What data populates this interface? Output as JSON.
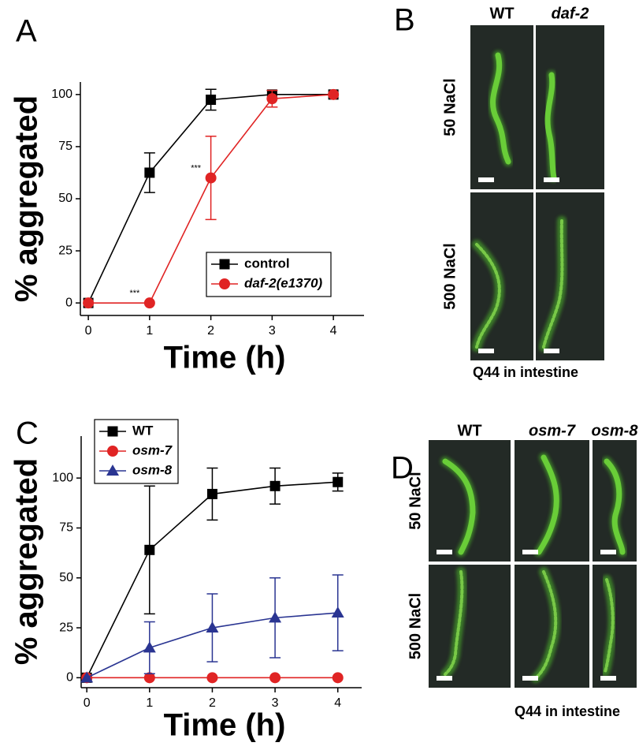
{
  "chart_data": [
    {
      "type": "line",
      "panel_label": "A",
      "ylabel": "% aggregated",
      "xlabel": "Time (h)",
      "x": [
        0,
        1,
        2,
        3,
        4
      ],
      "series": [
        {
          "name": "control",
          "color": "#000000",
          "marker": "square",
          "italic": false,
          "values": [
            0,
            62.5,
            97.5,
            100,
            100
          ],
          "errors": [
            0,
            9.5,
            5,
            0,
            0
          ]
        },
        {
          "name": "daf-2(e1370)",
          "color": "#e02424",
          "marker": "circle",
          "italic": true,
          "values": [
            0,
            0,
            60,
            98,
            100
          ],
          "errors": [
            0,
            0,
            20,
            4,
            0
          ]
        }
      ],
      "annotations": [
        "***",
        "***"
      ],
      "xlim": [
        -0.13,
        4.5
      ],
      "ylim": [
        -6,
        106
      ],
      "xticks": [
        0,
        1,
        2,
        3,
        4
      ],
      "yticks": [
        0,
        25,
        50,
        75,
        100
      ],
      "legend": "lower right"
    },
    {
      "type": "line",
      "panel_label": "C",
      "ylabel": "% aggregated",
      "xlabel": "Time (h)",
      "x": [
        0,
        1,
        2,
        3,
        4
      ],
      "series": [
        {
          "name": "WT",
          "color": "#000000",
          "marker": "square",
          "italic": false,
          "values": [
            0,
            64,
            92,
            96,
            98
          ],
          "errors": [
            0,
            32,
            13,
            9,
            4.5
          ]
        },
        {
          "name": "osm-7",
          "color": "#e02424",
          "marker": "circle",
          "italic": true,
          "values": [
            0,
            0,
            0,
            0,
            0
          ],
          "errors": [
            0,
            0,
            0,
            0,
            0
          ]
        },
        {
          "name": "osm-8",
          "color": "#2a3592",
          "marker": "triangle",
          "italic": true,
          "values": [
            0,
            15,
            25,
            30,
            32.5
          ],
          "errors": [
            0,
            13,
            17,
            20,
            19
          ]
        }
      ],
      "annotations": [],
      "xlim": [
        -0.09,
        4.38
      ],
      "ylim": [
        -5,
        121
      ],
      "xticks": [
        0,
        1,
        2,
        3,
        4
      ],
      "yticks": [
        0,
        25,
        50,
        75,
        100
      ],
      "legend": "upper left"
    }
  ],
  "image_panels": [
    {
      "label": "B",
      "columns": [
        "WT",
        "daf-2"
      ],
      "rows": [
        "50 NaCl",
        "500 NaCl"
      ],
      "caption": "Q44 in intestine"
    },
    {
      "label": "D",
      "columns": [
        "WT",
        "osm-7",
        "osm-8"
      ],
      "rows": [
        "50 NaCl",
        "500 NaCl"
      ],
      "caption": "Q44 in intestine"
    }
  ]
}
